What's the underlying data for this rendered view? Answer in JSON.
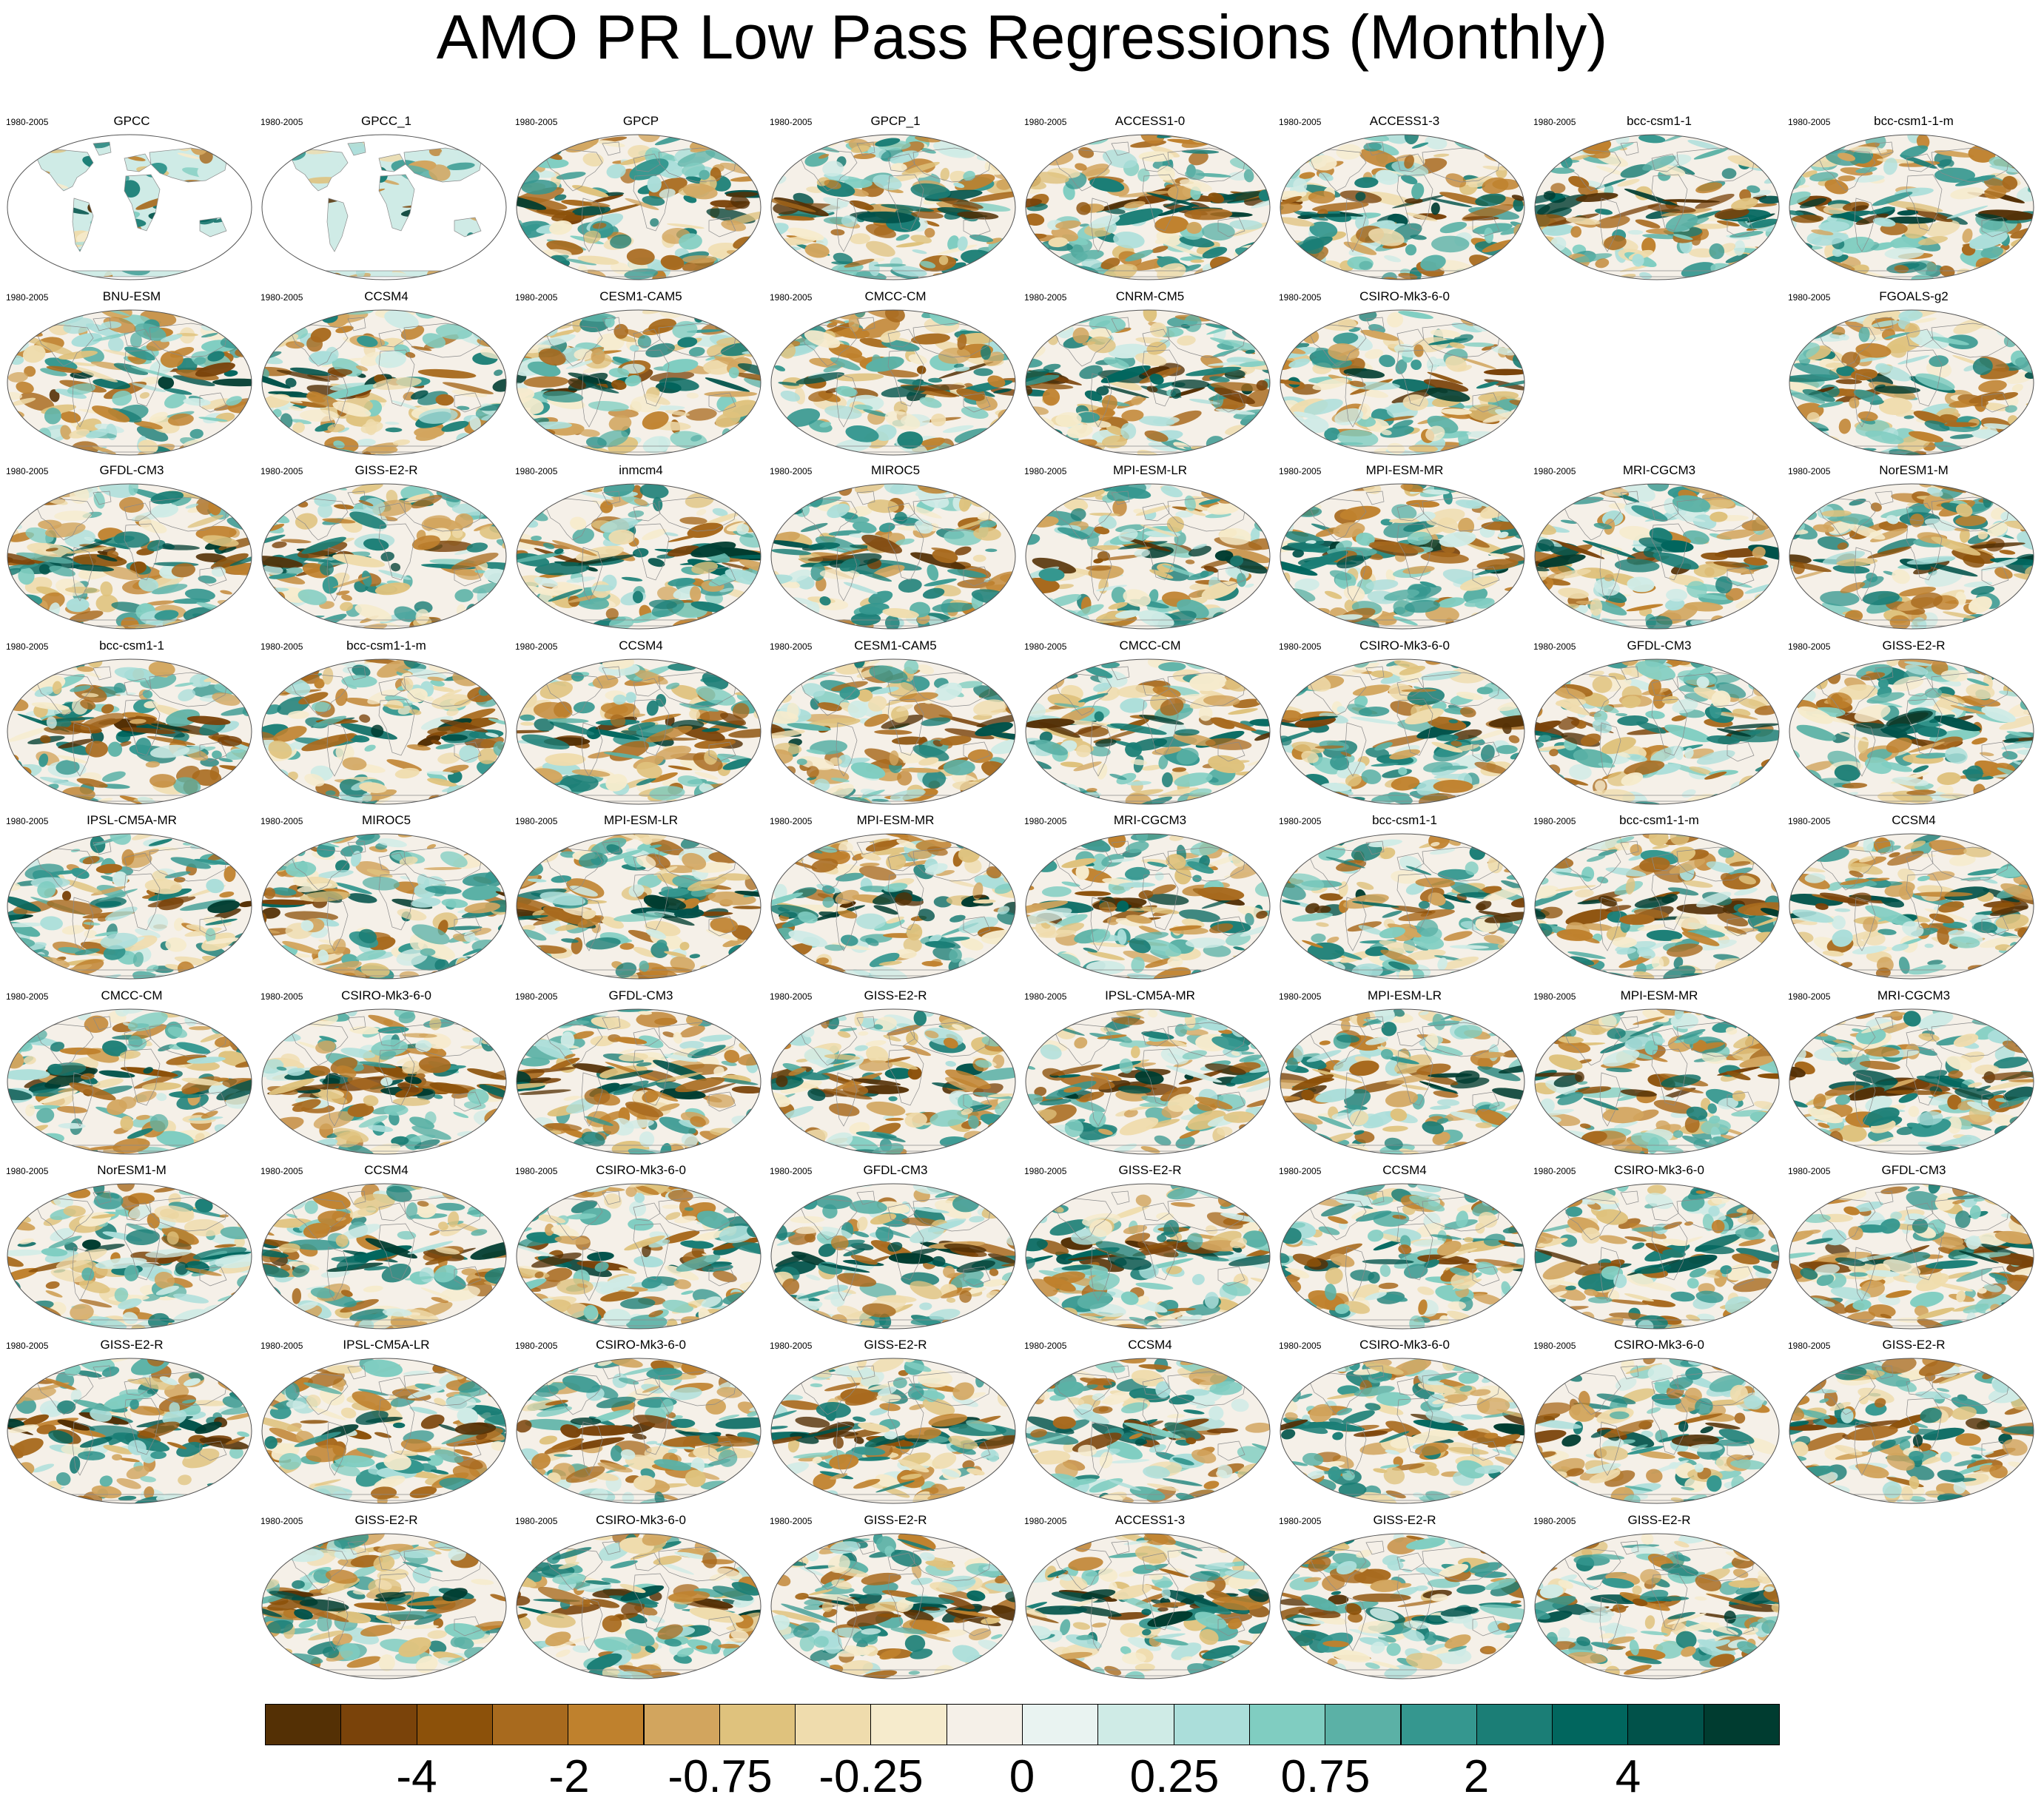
{
  "chart_data": {
    "type": "heatmap",
    "title": "AMO PR Low Pass Regressions (Monthly)",
    "projection": "robinson",
    "colormap": [
      "#543005",
      "#7a430a",
      "#8c510a",
      "#a86a1e",
      "#bf812d",
      "#d2a55e",
      "#dfc27d",
      "#efdcad",
      "#f6ebcc",
      "#f5f0e8",
      "#e9f3f1",
      "#cfebe6",
      "#abdeda",
      "#80cdc1",
      "#5bb1a6",
      "#35978f",
      "#1b7e76",
      "#01665e",
      "#01524a",
      "#003c30"
    ],
    "colorbar_labels": [
      "-4",
      "-2",
      "-0.75",
      "-0.25",
      "0",
      "0.25",
      "0.75",
      "2",
      "4"
    ],
    "panels": [
      {
        "name": "GPCC",
        "period": "1980-2005",
        "land_only": true
      },
      {
        "name": "GPCC_1",
        "period": "1980-2005",
        "land_only": true
      },
      {
        "name": "GPCP",
        "period": "1980-2005"
      },
      {
        "name": "GPCP_1",
        "period": "1980-2005"
      },
      {
        "name": "ACCESS1-0",
        "period": "1980-2005"
      },
      {
        "name": "ACCESS1-3",
        "period": "1980-2005"
      },
      {
        "name": "bcc-csm1-1",
        "period": "1980-2005"
      },
      {
        "name": "bcc-csm1-1-m",
        "period": "1980-2005"
      },
      {
        "name": "BNU-ESM",
        "period": "1980-2005"
      },
      {
        "name": "CCSM4",
        "period": "1980-2005"
      },
      {
        "name": "CESM1-CAM5",
        "period": "1980-2005"
      },
      {
        "name": "CMCC-CM",
        "period": "1980-2005"
      },
      {
        "name": "CNRM-CM5",
        "period": "1980-2005"
      },
      {
        "name": "CSIRO-Mk3-6-0",
        "period": "1980-2005"
      },
      {
        "name": "FGOALS-g2",
        "period": "1980-2005"
      },
      {
        "name": "GFDL-CM3",
        "period": "1980-2005"
      },
      {
        "name": "GISS-E2-R",
        "period": "1980-2005"
      },
      {
        "name": "inmcm4",
        "period": "1980-2005"
      },
      {
        "name": "MIROC5",
        "period": "1980-2005"
      },
      {
        "name": "MPI-ESM-LR",
        "period": "1980-2005"
      },
      {
        "name": "MPI-ESM-MR",
        "period": "1980-2005"
      },
      {
        "name": "MRI-CGCM3",
        "period": "1980-2005"
      },
      {
        "name": "NorESM1-M",
        "period": "1980-2005"
      },
      {
        "name": "bcc-csm1-1",
        "period": "1980-2005"
      },
      {
        "name": "bcc-csm1-1-m",
        "period": "1980-2005"
      },
      {
        "name": "CCSM4",
        "period": "1980-2005"
      },
      {
        "name": "CESM1-CAM5",
        "period": "1980-2005"
      },
      {
        "name": "CMCC-CM",
        "period": "1980-2005"
      },
      {
        "name": "CSIRO-Mk3-6-0",
        "period": "1980-2005"
      },
      {
        "name": "GFDL-CM3",
        "period": "1980-2005"
      },
      {
        "name": "GISS-E2-R",
        "period": "1980-2005"
      },
      {
        "name": "IPSL-CM5A-MR",
        "period": "1980-2005"
      },
      {
        "name": "MIROC5",
        "period": "1980-2005"
      },
      {
        "name": "MPI-ESM-LR",
        "period": "1980-2005"
      },
      {
        "name": "MPI-ESM-MR",
        "period": "1980-2005"
      },
      {
        "name": "MRI-CGCM3",
        "period": "1980-2005"
      },
      {
        "name": "bcc-csm1-1",
        "period": "1980-2005"
      },
      {
        "name": "bcc-csm1-1-m",
        "period": "1980-2005"
      },
      {
        "name": "CCSM4",
        "period": "1980-2005"
      },
      {
        "name": "CMCC-CM",
        "period": "1980-2005"
      },
      {
        "name": "CSIRO-Mk3-6-0",
        "period": "1980-2005"
      },
      {
        "name": "GFDL-CM3",
        "period": "1980-2005"
      },
      {
        "name": "GISS-E2-R",
        "period": "1980-2005"
      },
      {
        "name": "IPSL-CM5A-MR",
        "period": "1980-2005"
      },
      {
        "name": "MPI-ESM-LR",
        "period": "1980-2005"
      },
      {
        "name": "MPI-ESM-MR",
        "period": "1980-2005"
      },
      {
        "name": "MRI-CGCM3",
        "period": "1980-2005"
      },
      {
        "name": "NorESM1-M",
        "period": "1980-2005"
      },
      {
        "name": "CCSM4",
        "period": "1980-2005"
      },
      {
        "name": "CSIRO-Mk3-6-0",
        "period": "1980-2005"
      },
      {
        "name": "GFDL-CM3",
        "period": "1980-2005"
      },
      {
        "name": "GISS-E2-R",
        "period": "1980-2005"
      },
      {
        "name": "CCSM4",
        "period": "1980-2005"
      },
      {
        "name": "CSIRO-Mk3-6-0",
        "period": "1980-2005"
      },
      {
        "name": "GFDL-CM3",
        "period": "1980-2005"
      },
      {
        "name": "GISS-E2-R",
        "period": "1980-2005"
      },
      {
        "name": "IPSL-CM5A-LR",
        "period": "1980-2005"
      },
      {
        "name": "CSIRO-Mk3-6-0",
        "period": "1980-2005"
      },
      {
        "name": "GISS-E2-R",
        "period": "1980-2005"
      },
      {
        "name": "CCSM4",
        "period": "1980-2005"
      },
      {
        "name": "CSIRO-Mk3-6-0",
        "period": "1980-2005"
      },
      {
        "name": "CSIRO-Mk3-6-0",
        "period": "1980-2005"
      },
      {
        "name": "GISS-E2-R",
        "period": "1980-2005"
      },
      {
        "name": "GISS-E2-R",
        "period": "1980-2005"
      },
      {
        "name": "CSIRO-Mk3-6-0",
        "period": "1980-2005"
      },
      {
        "name": "GISS-E2-R",
        "period": "1980-2005"
      },
      {
        "name": "ACCESS1-3",
        "period": "1980-2005"
      },
      {
        "name": "GISS-E2-R",
        "period": "1980-2005"
      },
      {
        "name": "GISS-E2-R",
        "period": "1980-2005"
      }
    ],
    "grid_rows": [
      [
        0,
        1,
        2,
        3,
        4,
        5,
        6,
        7
      ],
      [
        8,
        9,
        10,
        11,
        12,
        13,
        null,
        14
      ],
      [
        15,
        16,
        17,
        18,
        19,
        20,
        21,
        22
      ],
      [
        23,
        24,
        25,
        26,
        27,
        28,
        29,
        30
      ],
      [
        31,
        32,
        33,
        34,
        35,
        36,
        37,
        38
      ],
      [
        39,
        40,
        41,
        42,
        43,
        44,
        45,
        46
      ],
      [
        47,
        48,
        49,
        50,
        51,
        52,
        53,
        54
      ],
      [
        55,
        56,
        57,
        58,
        59,
        60,
        61,
        62
      ],
      [
        null,
        63,
        64,
        65,
        66,
        67,
        68,
        null
      ]
    ]
  }
}
